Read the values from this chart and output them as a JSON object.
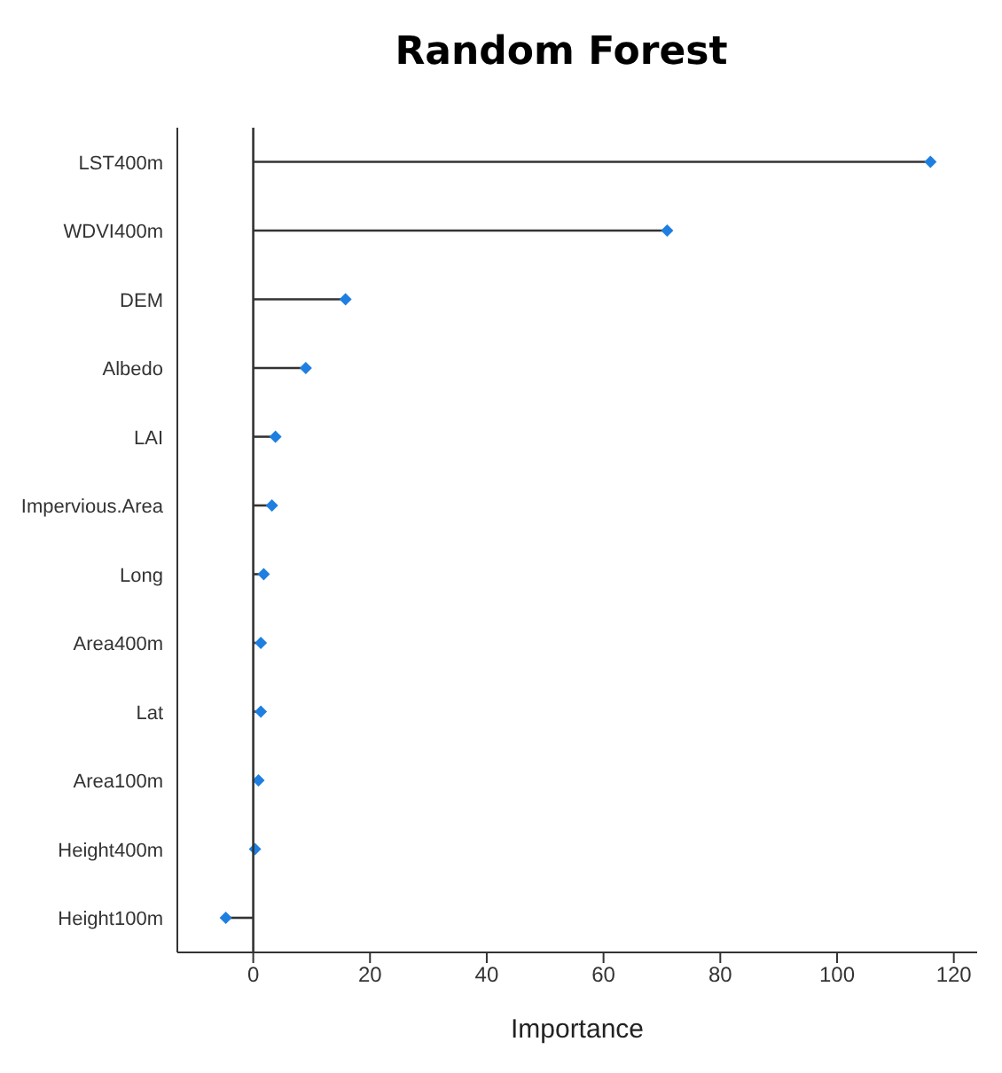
{
  "chart_data": {
    "type": "lollipop",
    "orientation": "horizontal",
    "title": "Random Forest",
    "xlabel": "Importance",
    "categories": [
      "LST400m",
      "WDVI400m",
      "DEM",
      "Albedo",
      "LAI",
      "Impervious.Area",
      "Long",
      "Area400m",
      "Lat",
      "Area100m",
      "Height400m",
      "Height100m"
    ],
    "series": [
      {
        "color": "#1e7fe0",
        "values": [
          116.0,
          70.9,
          15.8,
          9.0,
          3.8,
          3.2,
          1.8,
          1.3,
          1.3,
          0.9,
          0.3,
          -4.7
        ]
      }
    ],
    "xlim": [
      -13,
      124
    ],
    "xticks": [
      0,
      20,
      40,
      60,
      80,
      100,
      120
    ],
    "ref_lines": [
      {
        "axis": "x",
        "value": 0,
        "color": "#333333"
      }
    ],
    "marker": "diamond"
  }
}
